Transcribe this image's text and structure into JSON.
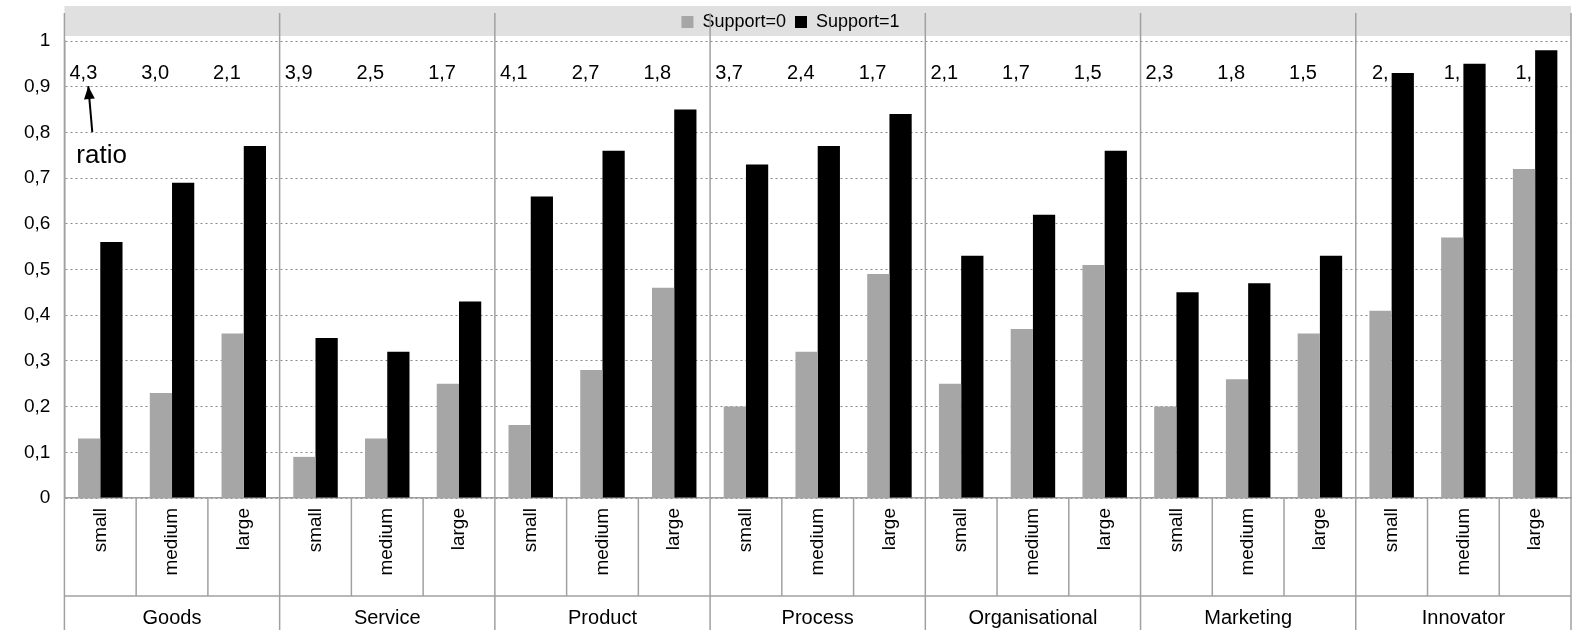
{
  "chart_data": {
    "type": "bar",
    "categories": [
      "small",
      "medium",
      "large",
      "small",
      "medium",
      "large",
      "small",
      "medium",
      "large",
      "small",
      "medium",
      "large",
      "small",
      "medium",
      "large",
      "small",
      "medium",
      "large",
      "small",
      "medium",
      "large"
    ],
    "series": [
      {
        "name": "Support=0",
        "color": "#a6a6a6",
        "values": [
          0.13,
          0.23,
          0.36,
          0.09,
          0.13,
          0.25,
          0.16,
          0.28,
          0.46,
          0.2,
          0.32,
          0.49,
          0.25,
          0.37,
          0.51,
          0.2,
          0.26,
          0.36,
          0.41,
          0.57,
          0.72
        ]
      },
      {
        "name": "Support=1",
        "color": "#000000",
        "values": [
          0.56,
          0.69,
          0.77,
          0.35,
          0.32,
          0.43,
          0.66,
          0.76,
          0.85,
          0.73,
          0.77,
          0.84,
          0.53,
          0.62,
          0.76,
          0.45,
          0.47,
          0.53,
          0.93,
          0.95,
          0.98
        ]
      }
    ],
    "ylim": [
      0,
      1
    ],
    "yticks": [
      0,
      {
        "value": 0.1,
        "label": "0,1"
      },
      {
        "value": 0.2,
        "label": "0,2"
      },
      {
        "value": 0.3,
        "label": "0,3"
      },
      {
        "value": 0.4,
        "label": "0,4"
      },
      {
        "value": 0.5,
        "label": "0,5"
      },
      {
        "value": 0.6,
        "label": "0,6"
      },
      {
        "value": 0.7,
        "label": "0,7"
      },
      {
        "value": 0.8,
        "label": "0,8"
      },
      {
        "value": 0.9,
        "label": "0,9"
      },
      1
    ],
    "grid": "y",
    "legend": "top",
    "annotations": [
      "4,3",
      "3,0",
      "2,1",
      "3,9",
      "2,5",
      "1,7",
      "4,1",
      "2,7",
      "1,8",
      "3,7",
      "2,4",
      "1,7",
      "2,1",
      "1,7",
      "1,5",
      "2,3",
      "1,8",
      "1,5",
      "2,",
      "1,",
      "1,",
      "ratio",
      "Goods",
      "Service",
      "Product",
      "Process",
      "Organisational",
      "Marketing",
      "Innovator"
    ]
  }
}
